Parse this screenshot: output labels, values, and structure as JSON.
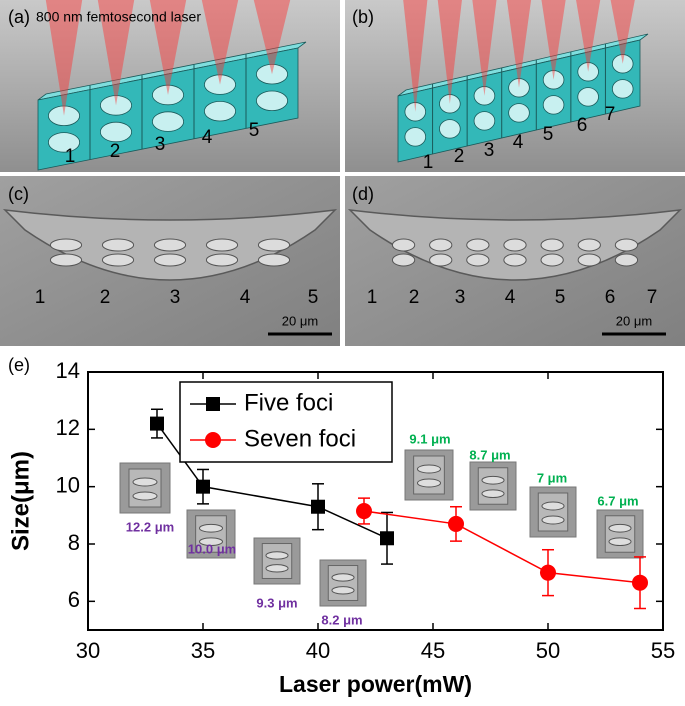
{
  "panels": [
    {
      "label": "(a)",
      "caption": "800 nm femtosecond laser",
      "numbers": [
        "1",
        "2",
        "3",
        "4",
        "5"
      ]
    },
    {
      "label": "(b)",
      "numbers": [
        "1",
        "2",
        "3",
        "4",
        "5",
        "6",
        "7"
      ]
    },
    {
      "label": "(c)",
      "numbers": [
        "1",
        "2",
        "3",
        "4",
        "5"
      ],
      "scale_bar": "20 μm"
    },
    {
      "label": "(d)",
      "numbers": [
        "1",
        "2",
        "3",
        "4",
        "5",
        "6",
        "7"
      ],
      "scale_bar": "20 μm"
    }
  ],
  "chart_data": {
    "type": "line",
    "panel_label": "(e)",
    "x_label": "Laser power(mW)",
    "y_label": "Size(μm)",
    "xlim": [
      30,
      55
    ],
    "xticks": [
      30,
      35,
      40,
      45,
      50,
      55
    ],
    "ylim": [
      5,
      14
    ],
    "yticks": [
      6,
      8,
      10,
      12,
      14
    ],
    "legend": "top",
    "series": [
      {
        "name": "Five foci",
        "color": "#000000",
        "marker": "square",
        "x": [
          33,
          35,
          40,
          43
        ],
        "values": [
          12.2,
          10.0,
          9.3,
          8.2
        ],
        "errors": [
          0.5,
          0.6,
          0.8,
          0.9
        ]
      },
      {
        "name": "Seven foci",
        "color": "#ff0000",
        "marker": "circle",
        "x": [
          42,
          46,
          50,
          54
        ],
        "values": [
          9.15,
          8.7,
          7.0,
          6.65
        ],
        "errors": [
          0.45,
          0.6,
          0.8,
          0.9
        ]
      }
    ],
    "annotations": [
      {
        "text": "12.2 μm",
        "color": "#7030a0"
      },
      {
        "text": "10.0 μm",
        "color": "#7030a0"
      },
      {
        "text": "9.3 μm",
        "color": "#7030a0"
      },
      {
        "text": "8.2 μm",
        "color": "#7030a0"
      },
      {
        "text": "9.1 μm",
        "color": "#00b050"
      },
      {
        "text": "8.7 μm",
        "color": "#00b050"
      },
      {
        "text": "7 μm",
        "color": "#00b050"
      },
      {
        "text": "6.7 μm",
        "color": "#00b050"
      }
    ]
  }
}
